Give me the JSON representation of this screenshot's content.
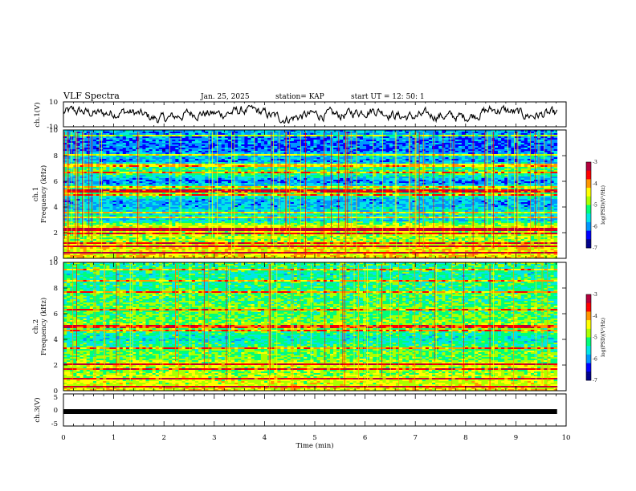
{
  "header": {
    "title": "VLF Spectra",
    "date": "Jan. 25, 2025",
    "station": "station= KAP",
    "start": "start  UT =   12: 50: 1"
  },
  "colorbar": {
    "label": "log(PSD)(V²/Hz)",
    "ticks": [
      "-3",
      "-4",
      "-5",
      "-6",
      "-7"
    ]
  },
  "chart_data": [
    {
      "type": "line",
      "name": "ch.1 waveform",
      "ylabel": "ch.1(V)",
      "ylim": [
        -10,
        10
      ],
      "yticks": [
        "10",
        "-10"
      ],
      "xlim": [
        0,
        10
      ],
      "description_values": "continuous signal fluctuating roughly between -6 and 7 V",
      "samples_per_min": 60
    },
    {
      "type": "heatmap",
      "name": "ch.1 spectrogram",
      "ylabel": "Frequency (kHz)",
      "channel_label": "ch.1",
      "ylim": [
        0,
        10
      ],
      "yticks": [
        "0",
        "2",
        "4",
        "6",
        "8",
        "10"
      ],
      "xlim": [
        0,
        10
      ],
      "colorscale": [
        "#00008b",
        "#0000ff",
        "#0096ff",
        "#00e6e6",
        "#00ff78",
        "#aaff00",
        "#ffff00",
        "#ff9600",
        "#ff0000",
        "#b4003c"
      ],
      "crange": [
        -7,
        -3
      ],
      "band_levels_kHz": [
        {
          "f": 0.0,
          "v": -4.3
        },
        {
          "f": 0.5,
          "v": -4.4
        },
        {
          "f": 1.0,
          "v": -4.4
        },
        {
          "f": 1.2,
          "v": -4.8
        },
        {
          "f": 1.5,
          "v": -4.8
        },
        {
          "f": 2.0,
          "v": -4.7
        },
        {
          "f": 2.3,
          "v": -4.3
        },
        {
          "f": 2.6,
          "v": -4.7
        },
        {
          "f": 3.0,
          "v": -5.7
        },
        {
          "f": 3.5,
          "v": -5.4
        },
        {
          "f": 4.0,
          "v": -5.8
        },
        {
          "f": 4.5,
          "v": -5.9
        },
        {
          "f": 5.0,
          "v": -5.0
        },
        {
          "f": 5.3,
          "v": -4.6
        },
        {
          "f": 5.6,
          "v": -5.5
        },
        {
          "f": 6.0,
          "v": -6.1
        },
        {
          "f": 6.5,
          "v": -5.3
        },
        {
          "f": 6.8,
          "v": -5.1
        },
        {
          "f": 7.2,
          "v": -5.3
        },
        {
          "f": 7.6,
          "v": -6.0
        },
        {
          "f": 8.0,
          "v": -5.6
        },
        {
          "f": 8.4,
          "v": -6.2
        },
        {
          "f": 9.0,
          "v": -6.1
        },
        {
          "f": 9.5,
          "v": -6.0
        },
        {
          "f": 10.0,
          "v": -5.8
        }
      ],
      "strong_lines_kHz": [
        0.45,
        0.9,
        1.15,
        1.9,
        2.25,
        3.15,
        3.55,
        4.95,
        5.25,
        5.55,
        6.7,
        7.25,
        8.1,
        9.6
      ]
    },
    {
      "type": "heatmap",
      "name": "ch.2 spectrogram",
      "ylabel": "Frequency (kHz)",
      "channel_label": "ch.2",
      "ylim": [
        0,
        10
      ],
      "yticks": [
        "0",
        "2",
        "4",
        "6",
        "8",
        "10"
      ],
      "xlim": [
        0,
        10
      ],
      "colorscale": [
        "#00008b",
        "#0000ff",
        "#0096ff",
        "#00e6e6",
        "#00ff78",
        "#aaff00",
        "#ffff00",
        "#ff9600",
        "#ff0000",
        "#b4003c"
      ],
      "crange": [
        -7,
        -3
      ],
      "band_levels_kHz": [
        {
          "f": 0.0,
          "v": -4.3
        },
        {
          "f": 0.5,
          "v": -4.6
        },
        {
          "f": 1.0,
          "v": -4.6
        },
        {
          "f": 1.5,
          "v": -4.9
        },
        {
          "f": 2.0,
          "v": -4.5
        },
        {
          "f": 2.5,
          "v": -5.0
        },
        {
          "f": 3.0,
          "v": -5.0
        },
        {
          "f": 3.5,
          "v": -5.2
        },
        {
          "f": 4.0,
          "v": -5.5
        },
        {
          "f": 4.5,
          "v": -5.3
        },
        {
          "f": 5.0,
          "v": -4.8
        },
        {
          "f": 5.5,
          "v": -5.0
        },
        {
          "f": 6.0,
          "v": -5.1
        },
        {
          "f": 6.5,
          "v": -4.9
        },
        {
          "f": 7.0,
          "v": -5.2
        },
        {
          "f": 7.5,
          "v": -5.0
        },
        {
          "f": 8.0,
          "v": -5.3
        },
        {
          "f": 8.5,
          "v": -5.2
        },
        {
          "f": 9.0,
          "v": -5.4
        },
        {
          "f": 9.5,
          "v": -5.3
        },
        {
          "f": 10.0,
          "v": -5.2
        }
      ],
      "strong_lines_kHz": [
        0.3,
        0.9,
        1.7,
        2.1,
        3.3,
        4.7,
        5.0,
        6.3,
        7.7,
        8.6,
        9.4
      ]
    },
    {
      "type": "line",
      "name": "ch.3 waveform",
      "ylabel": "ch.3(V)",
      "ylim": [
        -5,
        5
      ],
      "yticks": [
        "5",
        "0",
        "-5"
      ],
      "xlim": [
        0,
        10
      ],
      "xticks": [
        "0",
        "1",
        "2",
        "3",
        "4",
        "5",
        "6",
        "7",
        "8",
        "9",
        "10"
      ],
      "xlabel": "Time (min)",
      "description_values": "nearly flat trace around -0.5 V with small thickness",
      "level": -0.5
    }
  ]
}
